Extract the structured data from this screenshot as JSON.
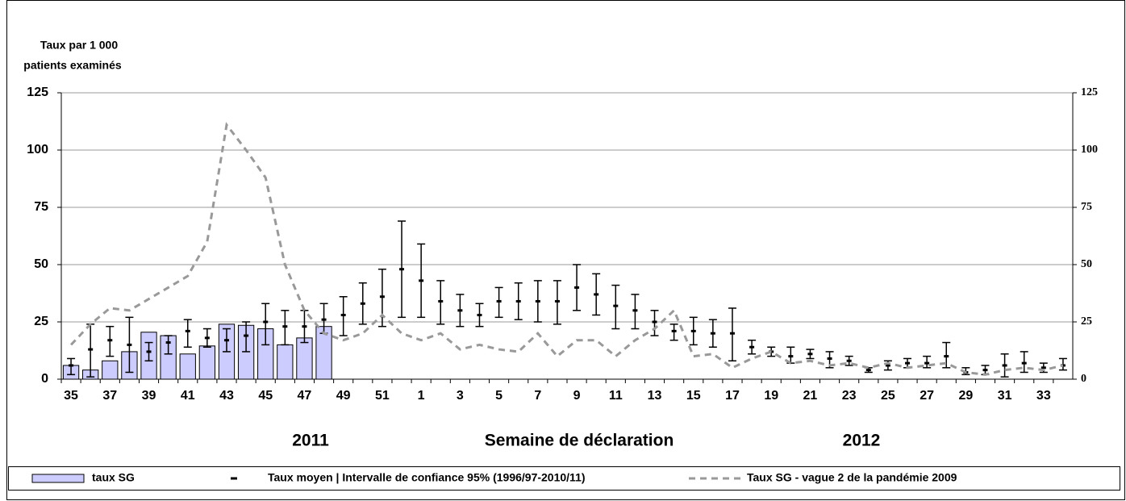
{
  "chart_data": {
    "type": "bar",
    "y_label_lines": [
      "Taux par 1 000",
      "patients examinés"
    ],
    "x_label": "Semaine de déclaration",
    "year_labels": [
      "2011",
      "2012"
    ],
    "categories": [
      "35",
      null,
      "37",
      null,
      "39",
      null,
      "41",
      null,
      "43",
      null,
      "45",
      null,
      "47",
      null,
      "49",
      null,
      "51",
      null,
      "1",
      null,
      "3",
      null,
      "5",
      null,
      "7",
      null,
      "9",
      null,
      "11",
      null,
      "13",
      null,
      "15",
      null,
      "17",
      null,
      "19",
      null,
      "21",
      null,
      "23",
      null,
      "25",
      null,
      "27",
      null,
      "29",
      null,
      "31",
      null,
      "33",
      null
    ],
    "ylim": [
      0,
      125
    ],
    "yticks": [
      0,
      25,
      50,
      75,
      100,
      125
    ],
    "y2lim": [
      0,
      125
    ],
    "y2ticks": [
      0,
      25,
      50,
      75,
      100,
      125
    ],
    "grid": true,
    "legend": "bottom",
    "series": [
      {
        "name": "taux SG",
        "type": "bar",
        "color": "#ccccff",
        "values": [
          6,
          4,
          8,
          12,
          20.5,
          19,
          11,
          14.5,
          24,
          23.5,
          22,
          15,
          18,
          23,
          null,
          null,
          null,
          null,
          null,
          null,
          null,
          null,
          null,
          null,
          null,
          null,
          null,
          null,
          null,
          null,
          null,
          null,
          null,
          null,
          null,
          null,
          null,
          null,
          null,
          null,
          null,
          null,
          null,
          null,
          null,
          null,
          null,
          null,
          null,
          null,
          null,
          null
        ]
      },
      {
        "name": "Taux moyen | Intervalle de confiance 95% (1996/97-2010/11)",
        "type": "errorbar",
        "color": "#000000",
        "values": [
          6,
          13,
          17,
          15,
          12,
          16,
          21,
          18,
          17,
          19,
          25,
          23,
          23,
          26,
          28,
          33,
          36,
          48,
          43,
          34,
          30,
          28,
          34,
          34,
          34,
          34,
          40,
          37,
          32,
          30,
          25,
          21,
          21,
          20,
          20,
          14,
          12,
          10,
          11,
          9,
          8,
          4,
          6,
          7,
          7,
          10,
          3,
          4,
          6,
          7,
          5,
          6
        ],
        "ci_low": [
          2,
          1,
          10,
          3,
          8,
          11,
          14,
          14,
          12,
          12,
          15,
          15,
          16,
          20,
          19,
          24,
          23,
          27,
          27,
          24,
          23,
          23,
          27,
          26,
          25,
          24,
          30,
          28,
          22,
          22,
          19,
          17,
          15,
          14,
          8,
          11,
          10,
          7,
          9,
          5,
          6,
          3,
          4,
          5,
          5,
          5,
          2,
          2,
          1,
          3,
          3,
          4
        ],
        "ci_high": [
          9,
          24,
          23,
          27,
          16,
          19,
          26,
          22,
          22,
          25,
          33,
          30,
          30,
          33,
          36,
          42,
          48,
          69,
          59,
          43,
          37,
          33,
          40,
          42,
          43,
          43,
          50,
          46,
          41,
          37,
          30,
          24,
          27,
          26,
          31,
          17,
          14,
          14,
          13,
          12,
          10,
          5,
          8,
          9,
          10,
          16,
          5,
          6,
          11,
          12,
          7,
          9
        ]
      },
      {
        "name": "Taux SG - vague 2 de la pandémie 2009",
        "type": "line",
        "color": "#999999",
        "dashed": true,
        "values": [
          15,
          24,
          31,
          30,
          35,
          40,
          45,
          60,
          111,
          100,
          88,
          50,
          30,
          20,
          17,
          20,
          28,
          20,
          17,
          20,
          13,
          15,
          13,
          12,
          20,
          10,
          17,
          17,
          10,
          17,
          22,
          30,
          10,
          11,
          5,
          9,
          12,
          7,
          8,
          6,
          7,
          5,
          7,
          5,
          6,
          7,
          3,
          2,
          4,
          5,
          4,
          6
        ]
      }
    ]
  }
}
